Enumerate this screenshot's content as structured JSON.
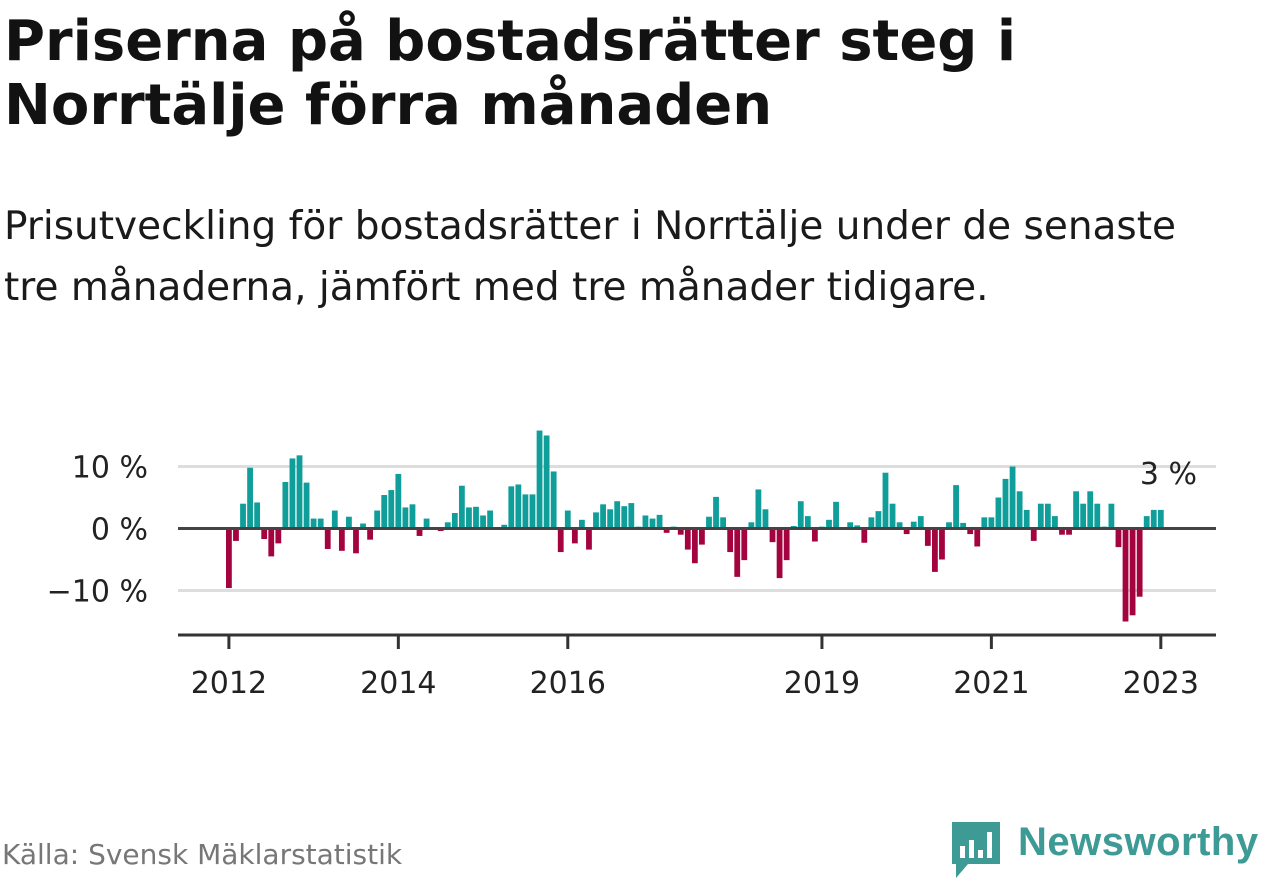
{
  "header": {
    "title": "Priserna på bostadsrätter steg i Norrtälje förra månaden",
    "subtitle": "Prisutveckling för bostadsrätter i Norrtälje under de senaste tre månaderna, jämfört med tre månader tidigare."
  },
  "footer": {
    "source": "Källa: Svensk Mäklarstatistik",
    "brand": "Newsworthy",
    "brand_icon": "chart-bubble-icon"
  },
  "colors": {
    "positive": "#0f9e99",
    "negative": "#a3043f",
    "zero_line": "#444444",
    "grid": "#dddddd",
    "axis": "#333333"
  },
  "chart_data": {
    "type": "bar",
    "title": "",
    "xlabel": "",
    "ylabel": "",
    "ylim": [
      -17,
      18
    ],
    "y_ticks": [
      10,
      0,
      -10
    ],
    "y_tick_labels": [
      "10 %",
      "0 %",
      "−10 %"
    ],
    "x_ticks": [
      2012,
      2014,
      2016,
      2019,
      2021,
      2023
    ],
    "x_tick_labels": [
      "2012",
      "2014",
      "2016",
      "2019",
      "2021",
      "2023"
    ],
    "grid": true,
    "x_start": "2012-01",
    "x_end": "2023-03",
    "annotation": {
      "text": "3 %",
      "value": 3
    },
    "series": [
      {
        "values": [
          -9.6,
          -2.0,
          4.0,
          9.8,
          4.2,
          -1.7,
          -4.5,
          -2.4,
          7.5,
          11.3,
          11.8,
          7.4,
          1.6,
          1.6,
          -3.3,
          2.9,
          -3.6,
          1.9,
          -4.0,
          0.8,
          -1.8,
          2.9,
          5.4,
          6.2,
          8.8,
          3.4,
          3.9,
          -1.2,
          1.6,
          0.2,
          -0.4,
          1.0,
          2.5,
          6.9,
          3.4,
          3.5,
          2.1,
          2.9,
          0.2,
          0.6,
          6.8,
          7.1,
          5.5,
          5.5,
          15.8,
          15.0,
          9.2,
          -3.8,
          2.9,
          -2.4,
          1.4,
          -3.4,
          2.6,
          3.9,
          3.1,
          4.4,
          3.6,
          4.1,
          0.3,
          2.1,
          1.6,
          2.2,
          -0.7,
          0.3,
          -1.0,
          -3.4,
          -5.6,
          -2.6,
          1.9,
          5.1,
          1.8,
          -3.8,
          -7.8,
          -5.1,
          1.0,
          6.3,
          3.1,
          -2.2,
          -8.0,
          -5.1,
          0.4,
          4.4,
          2.0,
          -2.1,
          0.3,
          1.4,
          4.3,
          0.1,
          1.0,
          0.5,
          -2.3,
          1.8,
          2.8,
          9.0,
          4.0,
          1.0,
          -0.9,
          1.1,
          2.0,
          -2.8,
          -7.0,
          -5.0,
          1.0,
          7.0,
          0.9,
          -0.9,
          -2.9,
          1.8,
          1.8,
          5.0,
          8.0,
          10.0,
          6.0,
          3.0,
          -2.0,
          4.0,
          4.0,
          2.0,
          -1.0,
          -1.0,
          6.0,
          4.0,
          6.0,
          4.0,
          0.3,
          4.0,
          -3.0,
          -15.0,
          -14.0,
          -11.0,
          2.0,
          3.0,
          3.0
        ]
      }
    ]
  }
}
